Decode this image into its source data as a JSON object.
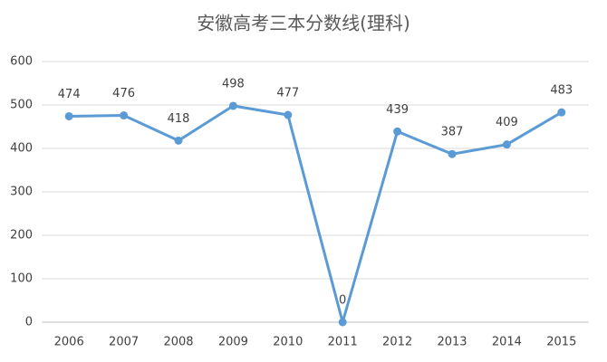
{
  "chart_data": {
    "type": "line",
    "title": "安徽高考三本分数线(理科)",
    "categories": [
      "2006",
      "2007",
      "2008",
      "2009",
      "2010",
      "2011",
      "2012",
      "2013",
      "2014",
      "2015"
    ],
    "values": [
      474,
      476,
      418,
      498,
      477,
      0,
      439,
      387,
      409,
      483
    ],
    "color": "#5b9bd5",
    "ylim": [
      0,
      600
    ],
    "yticks": [
      0,
      100,
      200,
      300,
      400,
      500,
      600
    ],
    "grid": true
  }
}
